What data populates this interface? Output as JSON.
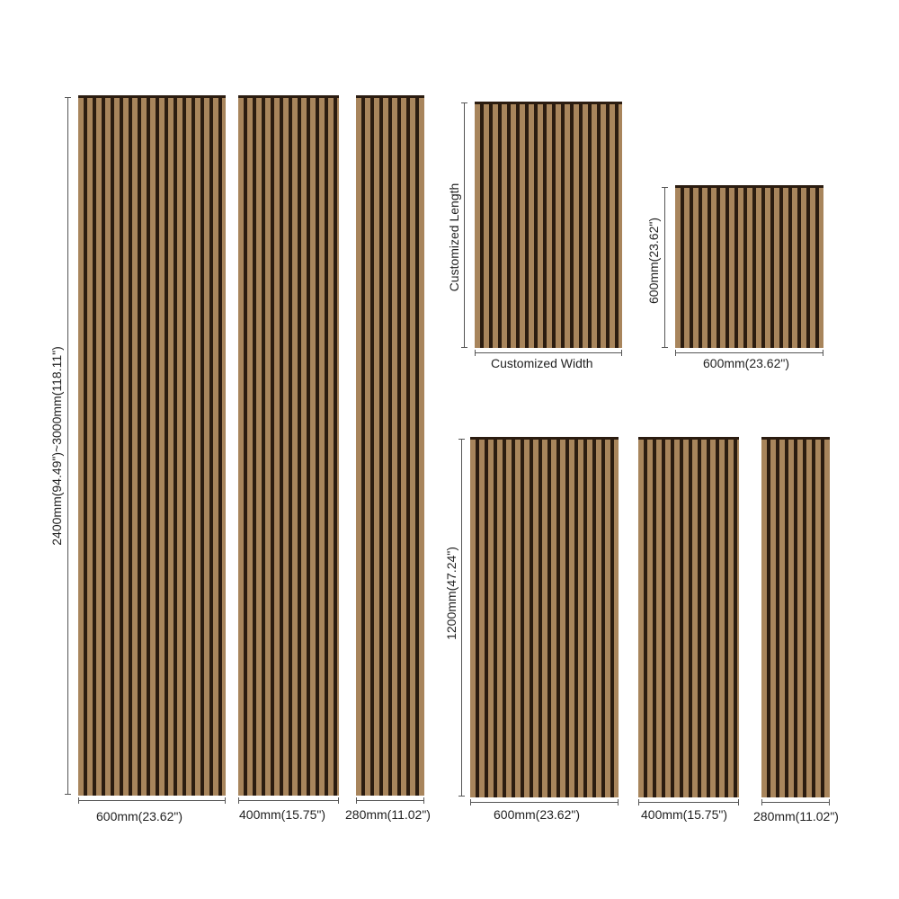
{
  "colors": {
    "wood": "#a8855c",
    "groove": "#2b1c10"
  },
  "labels": {
    "height_full": "2400mm(94.49\")~3000mm(118.11\")",
    "width_600": "600mm(23.62\")",
    "width_400": "400mm(15.75\")",
    "width_280": "280mm(11.02\")",
    "custom_length": "Customized Length",
    "custom_width": "Customized Width",
    "height_600": "600mm(23.62\")",
    "height_1200": "1200mm(47.24\")"
  }
}
